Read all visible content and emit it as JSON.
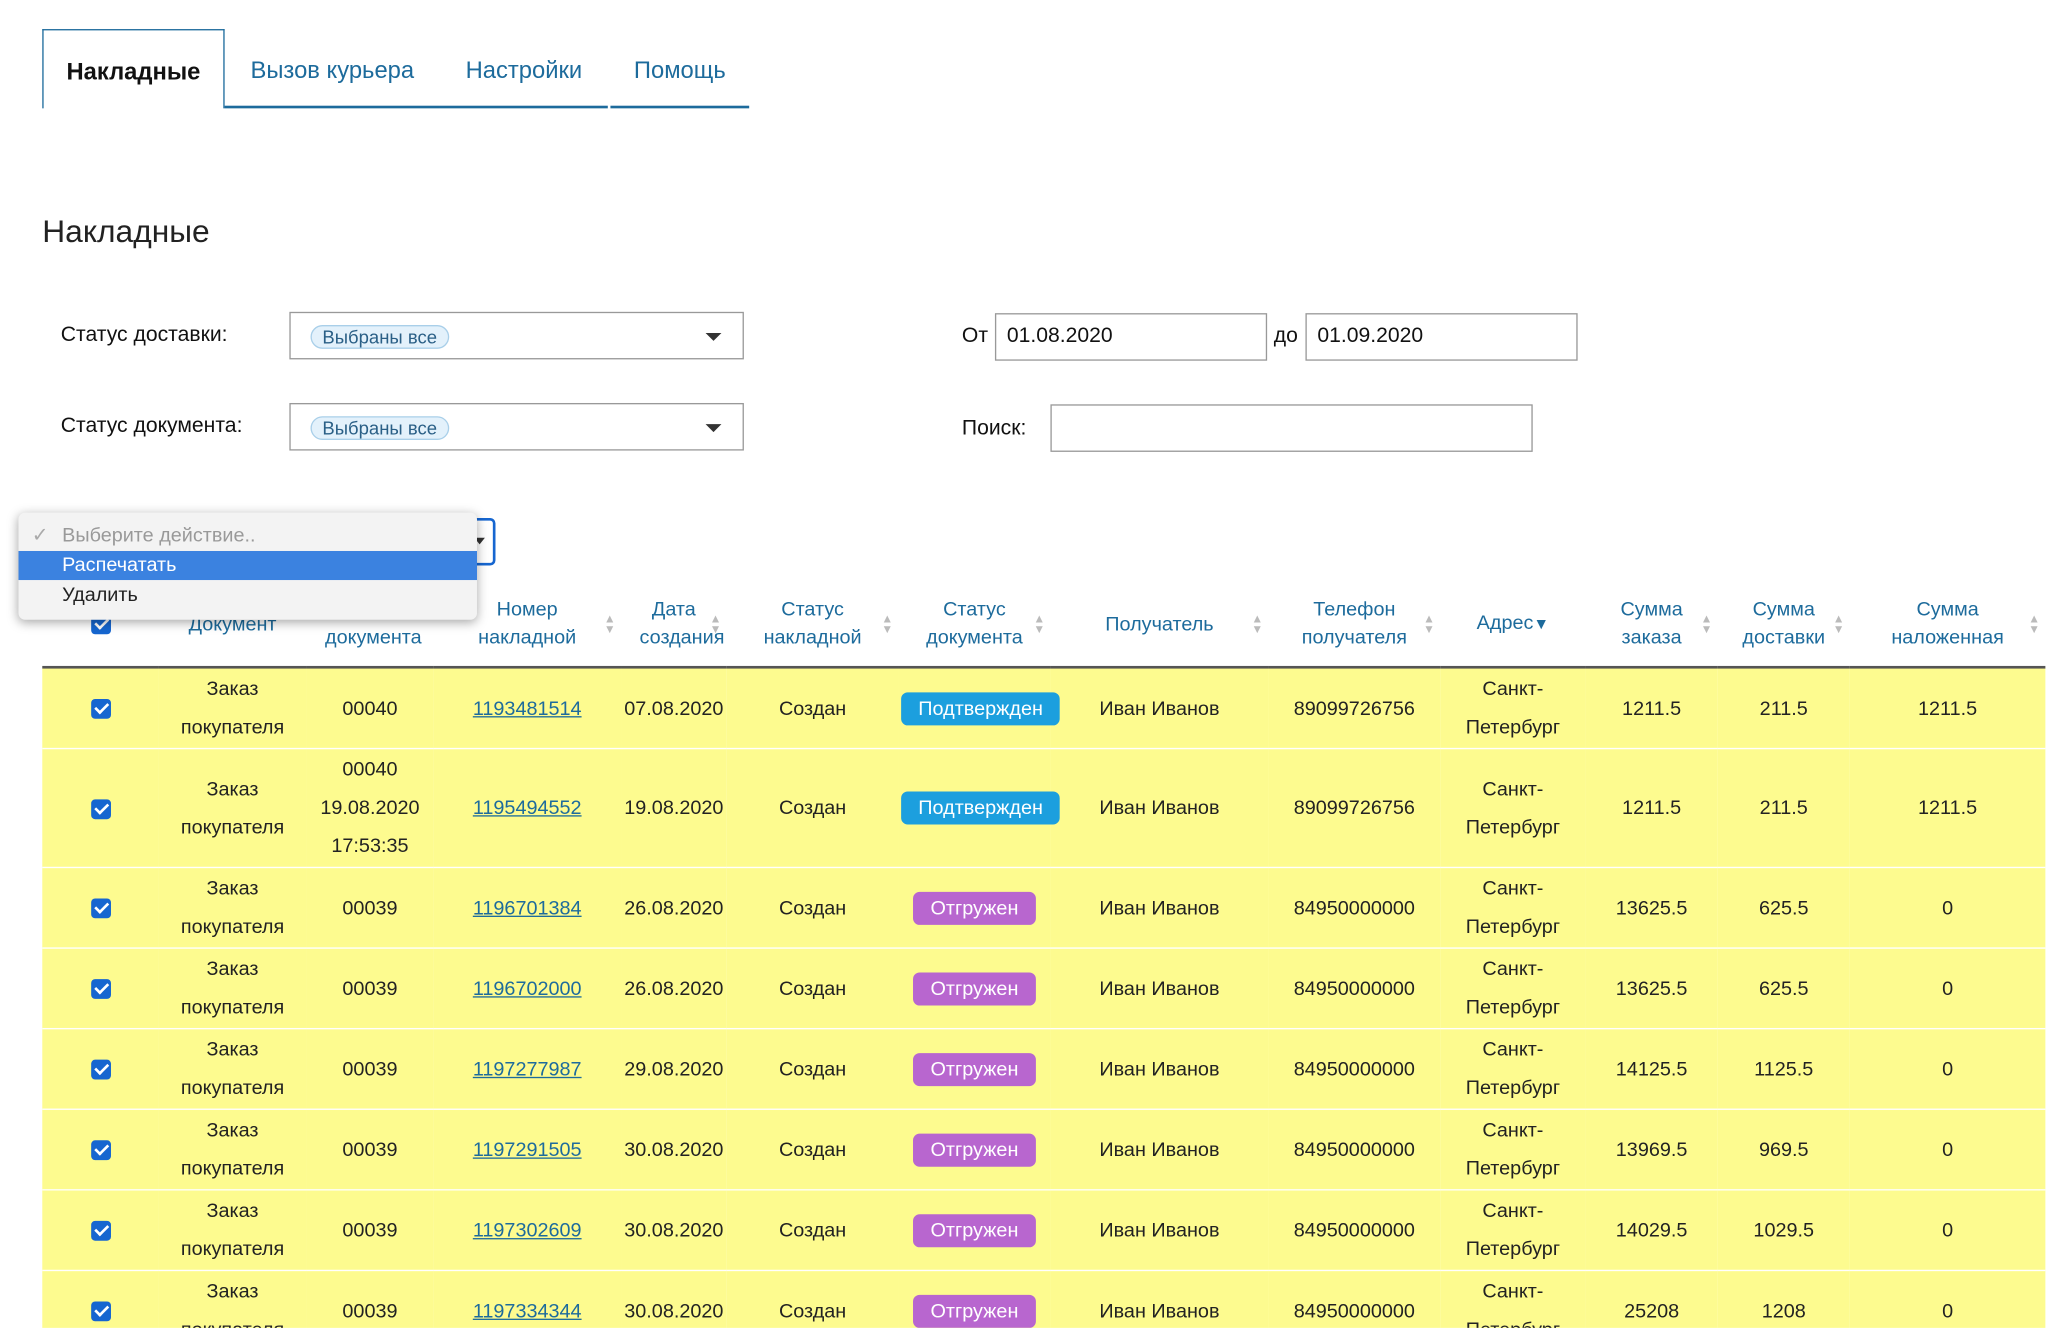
{
  "tabs": [
    "Накладные",
    "Вызов курьера",
    "Настройки",
    "Помощь"
  ],
  "heading": "Накладные",
  "filters": {
    "delivery_status": {
      "label": "Статус доставки:",
      "value": "Выбраны все"
    },
    "document_status": {
      "label": "Статус документа:",
      "value": "Выбраны все"
    },
    "date_from": {
      "label": "От",
      "value": "01.08.2020"
    },
    "date_to": {
      "label": "до",
      "value": "01.09.2020"
    },
    "search": {
      "label": "Поиск:"
    }
  },
  "action_menu": {
    "placeholder": "Выберите действие..",
    "options": [
      "Распечатать",
      "Удалить"
    ]
  },
  "badge_colors": {
    "Подтвержден": "#1c9fde",
    "Отгружен": "#b866cf"
  },
  "table": {
    "headers": [
      "Документ",
      "Номер документа",
      "Номер накладной",
      "Дата создания",
      "Статус накладной",
      "Статус документа",
      "Получатель",
      "Телефон получателя",
      "Адрес",
      "Сумма заказа",
      "Сумма доставки",
      "Сумма наложенная"
    ],
    "rows": [
      [
        "Заказ покупателя",
        "00040",
        "1193481514",
        "07.08.2020",
        "Создан",
        "Подтвержден",
        "Иван Иванов",
        "89099726756",
        "Санкт-Петербург",
        "1211.5",
        "211.5",
        "1211.5"
      ],
      [
        "Заказ покупателя",
        "00040\n19.08.2020\n17:53:35",
        "1195494552",
        "19.08.2020",
        "Создан",
        "Подтвержден",
        "Иван Иванов",
        "89099726756",
        "Санкт-Петербург",
        "1211.5",
        "211.5",
        "1211.5"
      ],
      [
        "Заказ покупателя",
        "00039",
        "1196701384",
        "26.08.2020",
        "Создан",
        "Отгружен",
        "Иван Иванов",
        "84950000000",
        "Санкт-Петербург",
        "13625.5",
        "625.5",
        "0"
      ],
      [
        "Заказ покупателя",
        "00039",
        "1196702000",
        "26.08.2020",
        "Создан",
        "Отгружен",
        "Иван Иванов",
        "84950000000",
        "Санкт-Петербург",
        "13625.5",
        "625.5",
        "0"
      ],
      [
        "Заказ покупателя",
        "00039",
        "1197277987",
        "29.08.2020",
        "Создан",
        "Отгружен",
        "Иван Иванов",
        "84950000000",
        "Санкт-Петербург",
        "14125.5",
        "1125.5",
        "0"
      ],
      [
        "Заказ покупателя",
        "00039",
        "1197291505",
        "30.08.2020",
        "Создан",
        "Отгружен",
        "Иван Иванов",
        "84950000000",
        "Санкт-Петербург",
        "13969.5",
        "969.5",
        "0"
      ],
      [
        "Заказ покупателя",
        "00039",
        "1197302609",
        "30.08.2020",
        "Создан",
        "Отгружен",
        "Иван Иванов",
        "84950000000",
        "Санкт-Петербург",
        "14029.5",
        "1029.5",
        "0"
      ],
      [
        "Заказ покупателя",
        "00039",
        "1197334344",
        "30.08.2020",
        "Создан",
        "Отгружен",
        "Иван Иванов",
        "84950000000",
        "Санкт-Петербург",
        "25208",
        "1208",
        "0"
      ]
    ]
  }
}
